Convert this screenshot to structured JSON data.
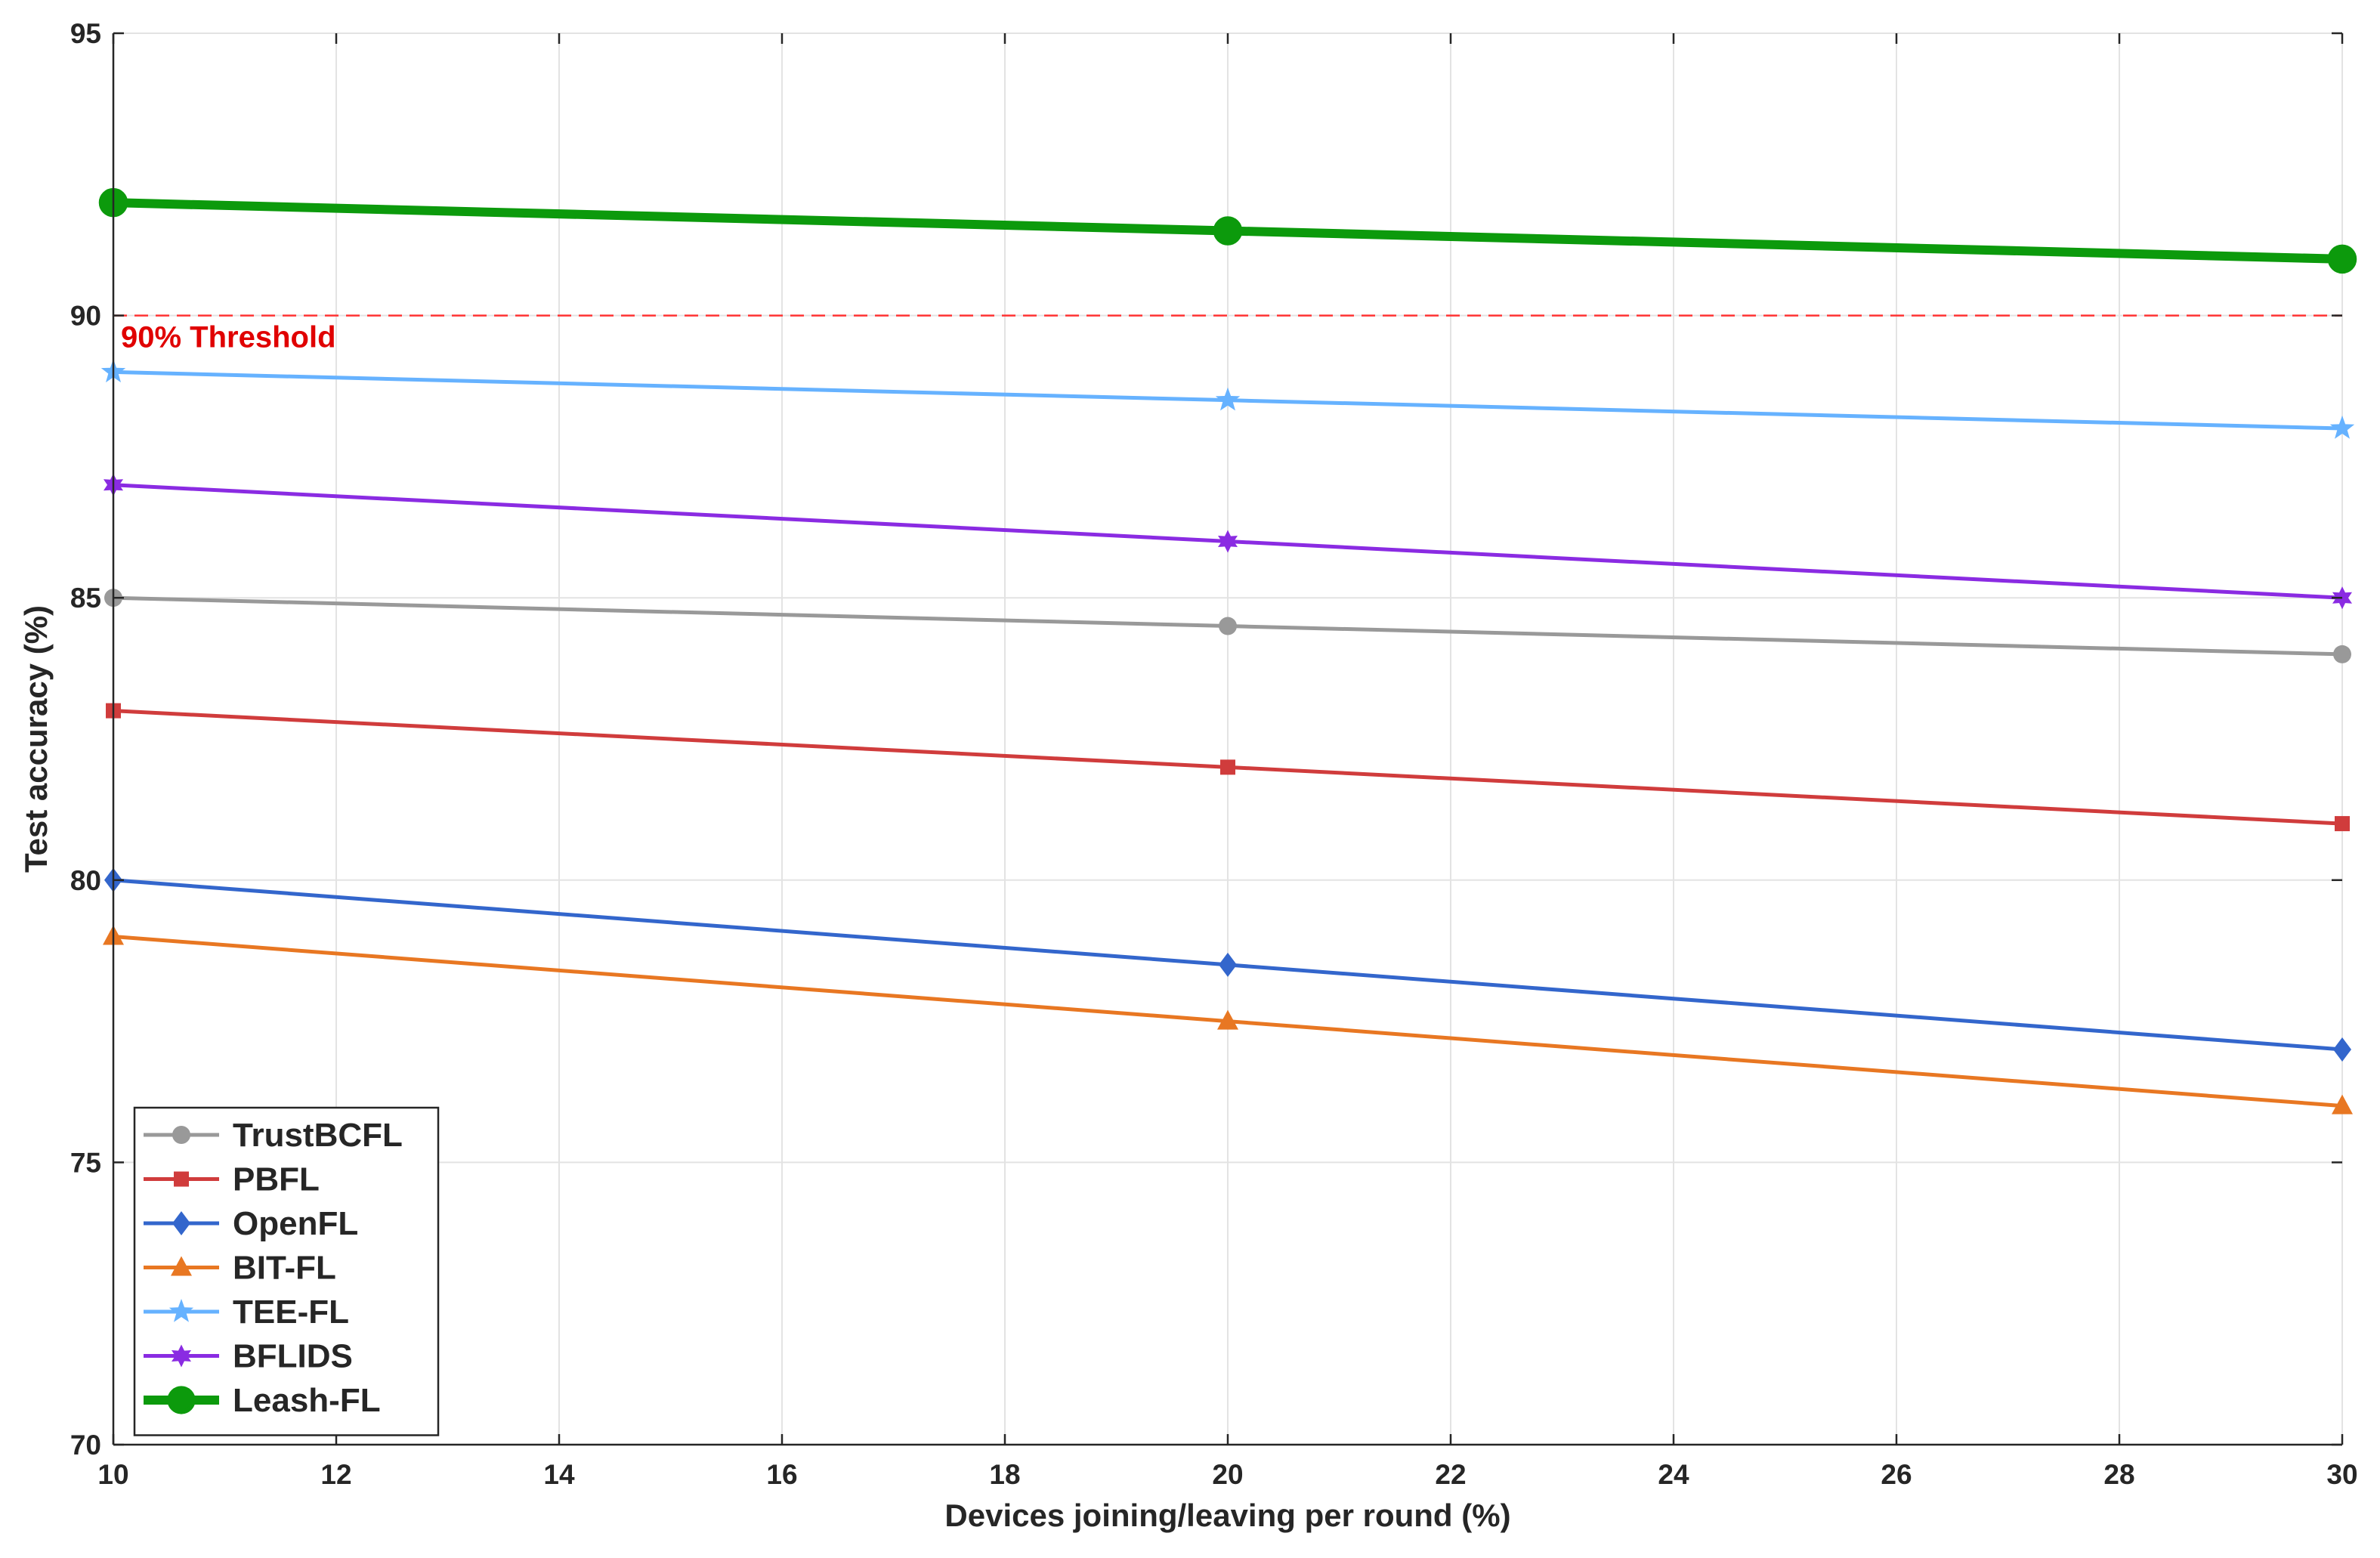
{
  "chart_data": {
    "type": "line",
    "x": [
      10,
      20,
      30
    ],
    "xlabel": "Devices joining/leaving per round (%)",
    "ylabel": "Test accuracy (%)",
    "xlim": [
      10,
      30
    ],
    "ylim": [
      70,
      95
    ],
    "xticks": [
      10,
      12,
      14,
      16,
      18,
      20,
      22,
      24,
      26,
      28,
      30
    ],
    "yticks": [
      70,
      75,
      80,
      85,
      90,
      95
    ],
    "grid": true,
    "legend_position": "bottom-left",
    "threshold": {
      "value": 90,
      "label": "90% Threshold",
      "color": "#ff3333"
    },
    "series": [
      {
        "name": "TrustBCFL",
        "values": [
          85,
          84.5,
          84
        ],
        "color": "#999999",
        "marker": "circle"
      },
      {
        "name": "PBFL",
        "values": [
          83,
          82,
          81
        ],
        "color": "#d03c3c",
        "marker": "square"
      },
      {
        "name": "OpenFL",
        "values": [
          80,
          78.5,
          77
        ],
        "color": "#3366cc",
        "marker": "diamond"
      },
      {
        "name": "BIT-FL",
        "values": [
          79,
          77.5,
          76
        ],
        "color": "#e87722",
        "marker": "triangle"
      },
      {
        "name": "TEE-FL",
        "values": [
          89,
          88.5,
          88
        ],
        "color": "#66b2ff",
        "marker": "star5"
      },
      {
        "name": "BFLIDS",
        "values": [
          87,
          86,
          85
        ],
        "color": "#8a2be2",
        "marker": "star6"
      },
      {
        "name": "Leash-FL",
        "values": [
          92,
          91.5,
          91
        ],
        "color": "#0c9a0c",
        "marker": "circle-bold"
      }
    ]
  }
}
